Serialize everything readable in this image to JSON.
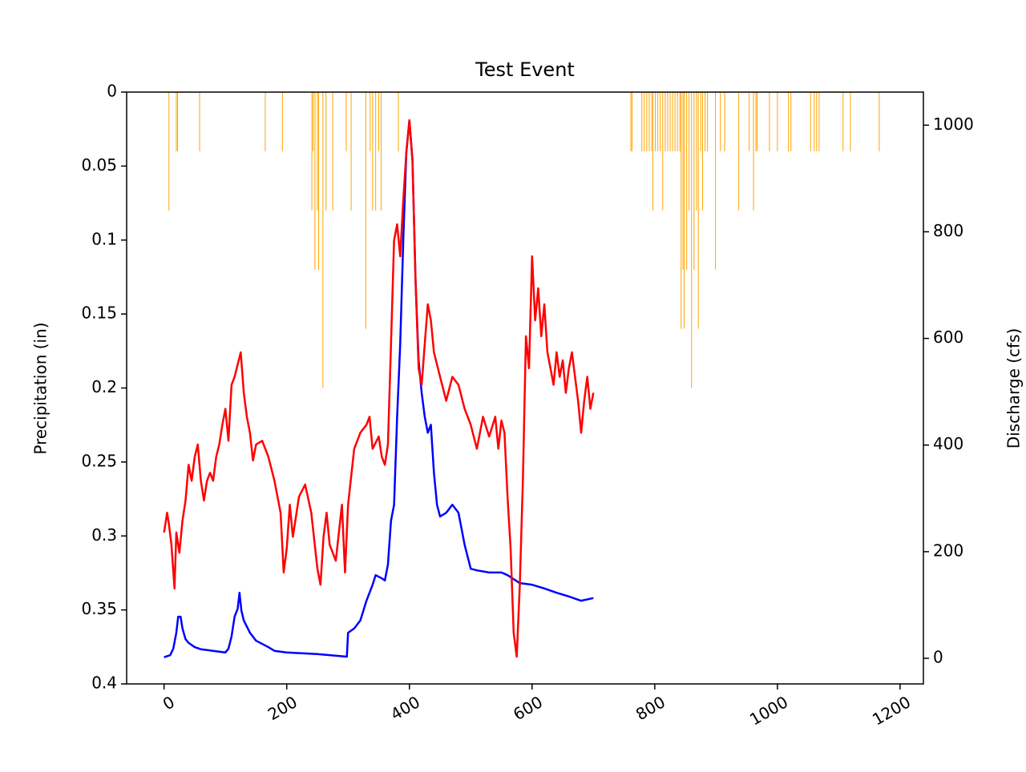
{
  "chart_data": {
    "type": "combo",
    "title": "Test Event",
    "ylabel": "Precipitation (in)",
    "y2label": "Discharge (cfs)",
    "xlim": [
      -61,
      1238
    ],
    "xticks": [
      0,
      200,
      400,
      600,
      800,
      1000,
      1200
    ],
    "ylim": [
      0.4,
      0
    ],
    "yticks": [
      0,
      0.05,
      0.1,
      0.15,
      0.2,
      0.25,
      0.3,
      0.35,
      0.4
    ],
    "y2lim": [
      -48,
      1062
    ],
    "y2ticks": [
      0,
      200,
      400,
      600,
      800,
      1000
    ],
    "grid": false,
    "series": [
      {
        "type": "bar",
        "axis": "y",
        "color": "#ffa500",
        "x": [
          8,
          20,
          22,
          58,
          165,
          193,
          241,
          243,
          246,
          250,
          252,
          259,
          264,
          275,
          297,
          305,
          329,
          336,
          340,
          345,
          350,
          354,
          382,
          761,
          763,
          779,
          783,
          787,
          791,
          795,
          797,
          801,
          805,
          809,
          813,
          817,
          821,
          825,
          829,
          833,
          837,
          841,
          843,
          846,
          848,
          852,
          856,
          860,
          864,
          868,
          871,
          875,
          878,
          882,
          886,
          899,
          907,
          914,
          937,
          954,
          961,
          965,
          967,
          987,
          1000,
          1018,
          1022,
          1054,
          1060,
          1064,
          1068,
          1107,
          1119,
          1166
        ],
        "values": [
          0.08,
          0.04,
          0.04,
          0.04,
          0.04,
          0.04,
          0.08,
          0.04,
          0.12,
          0.08,
          0.12,
          0.2,
          0.08,
          0.08,
          0.04,
          0.08,
          0.16,
          0.04,
          0.08,
          0.08,
          0.04,
          0.08,
          0.04,
          0.04,
          0.04,
          0.04,
          0.04,
          0.04,
          0.04,
          0.04,
          0.08,
          0.04,
          0.04,
          0.04,
          0.08,
          0.04,
          0.04,
          0.04,
          0.04,
          0.04,
          0.04,
          0.04,
          0.16,
          0.12,
          0.16,
          0.12,
          0.08,
          0.2,
          0.12,
          0.08,
          0.16,
          0.04,
          0.08,
          0.04,
          0.04,
          0.12,
          0.04,
          0.04,
          0.08,
          0.04,
          0.08,
          0.04,
          0.04,
          0.04,
          0.04,
          0.04,
          0.04,
          0.04,
          0.04,
          0.04,
          0.04,
          0.04,
          0.04,
          0.04
        ]
      },
      {
        "type": "line",
        "axis": "y2",
        "color": "#0000ff",
        "x": [
          0,
          10,
          15,
          20,
          23,
          27,
          30,
          35,
          40,
          50,
          60,
          80,
          100,
          105,
          110,
          115,
          120,
          123,
          126,
          130,
          140,
          150,
          170,
          180,
          200,
          250,
          298,
          300,
          310,
          320,
          330,
          340,
          345,
          355,
          360,
          365,
          370,
          375,
          380,
          385,
          390,
          395,
          400,
          405,
          410,
          415,
          420,
          425,
          430,
          435,
          440,
          445,
          450,
          460,
          470,
          480,
          490,
          500,
          510,
          530,
          550,
          560,
          580,
          600,
          620,
          640,
          660,
          680,
          700
        ],
        "values": [
          2,
          6,
          18,
          48,
          78,
          78,
          56,
          36,
          29,
          21,
          17,
          14,
          11,
          18,
          41,
          78,
          93,
          123,
          90,
          71,
          48,
          33,
          21,
          14,
          11,
          8,
          3,
          48,
          56,
          71,
          108,
          138,
          156,
          150,
          146,
          176,
          258,
          288,
          453,
          589,
          784,
          949,
          1009,
          934,
          709,
          559,
          498,
          453,
          423,
          438,
          348,
          288,
          266,
          273,
          288,
          273,
          213,
          168,
          165,
          161,
          161,
          156,
          141,
          138,
          131,
          123,
          116,
          108,
          113
        ]
      },
      {
        "type": "line",
        "axis": "y2",
        "color": "#ff0000",
        "x": [
          0,
          5,
          8,
          12,
          17,
          20,
          25,
          30,
          35,
          40,
          45,
          50,
          55,
          60,
          65,
          70,
          75,
          80,
          85,
          90,
          95,
          100,
          105,
          110,
          115,
          120,
          125,
          130,
          135,
          140,
          145,
          150,
          160,
          170,
          180,
          190,
          195,
          200,
          205,
          210,
          220,
          230,
          240,
          250,
          255,
          260,
          265,
          270,
          280,
          290,
          295,
          300,
          310,
          320,
          330,
          335,
          340,
          350,
          355,
          360,
          365,
          370,
          375,
          380,
          385,
          390,
          395,
          400,
          405,
          410,
          415,
          420,
          425,
          430,
          435,
          440,
          450,
          460,
          470,
          480,
          490,
          500,
          510,
          520,
          530,
          540,
          545,
          550,
          555,
          560,
          565,
          570,
          575,
          580,
          585,
          590,
          595,
          600,
          605,
          610,
          615,
          620,
          625,
          630,
          635,
          640,
          645,
          650,
          655,
          660,
          665,
          670,
          675,
          680,
          685,
          690,
          695,
          700
        ],
        "values": [
          236,
          273,
          251,
          213,
          131,
          236,
          198,
          258,
          296,
          363,
          333,
          378,
          401,
          333,
          296,
          333,
          348,
          333,
          378,
          401,
          438,
          468,
          408,
          513,
          528,
          551,
          574,
          498,
          453,
          423,
          371,
          401,
          408,
          378,
          333,
          273,
          161,
          206,
          288,
          228,
          303,
          326,
          273,
          168,
          138,
          228,
          273,
          213,
          183,
          288,
          161,
          288,
          393,
          423,
          438,
          453,
          393,
          416,
          378,
          363,
          401,
          589,
          784,
          814,
          754,
          859,
          949,
          1009,
          934,
          709,
          544,
          513,
          589,
          664,
          634,
          574,
          528,
          483,
          528,
          513,
          468,
          438,
          393,
          453,
          416,
          453,
          393,
          446,
          423,
          303,
          206,
          48,
          3,
          138,
          333,
          604,
          544,
          754,
          634,
          694,
          604,
          664,
          574,
          544,
          513,
          574,
          528,
          559,
          498,
          544,
          574,
          528,
          483,
          423,
          483,
          528,
          468,
          498
        ]
      }
    ]
  }
}
